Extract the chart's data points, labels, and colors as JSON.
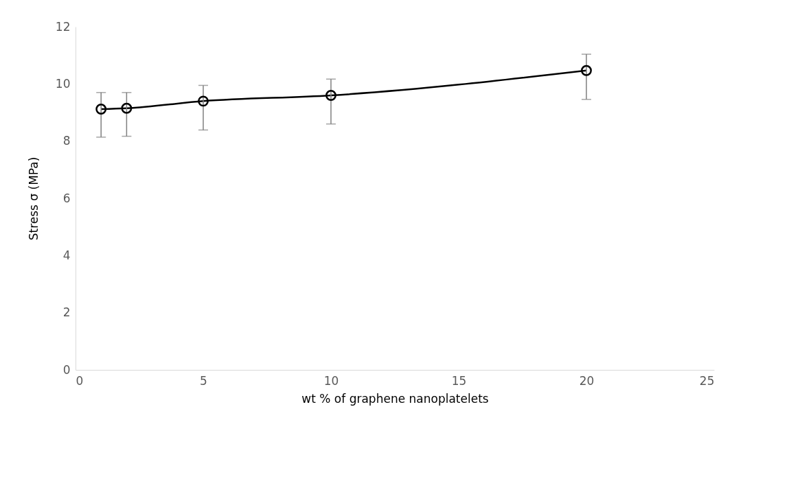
{
  "chart_data": {
    "type": "line",
    "xlabel": "wt % of graphene nanoplatelets",
    "ylabel": "Stress σ (MPa)",
    "x": [
      1,
      2,
      5,
      10,
      20
    ],
    "series": [
      {
        "color": "#000000",
        "values": [
          9.12,
          9.15,
          9.4,
          9.6,
          10.47
        ],
        "errors": [
          [
            8.14,
            9.7
          ],
          [
            8.17,
            9.7
          ],
          [
            8.39,
            9.95
          ],
          [
            8.6,
            10.17
          ],
          [
            9.46,
            11.04
          ]
        ]
      }
    ],
    "xlim": [
      0,
      25
    ],
    "xticks": [
      0,
      5,
      10,
      15,
      20,
      25
    ],
    "ylim": [
      0,
      12
    ],
    "yticks": [
      0,
      2,
      4,
      6,
      8,
      10,
      12
    ],
    "grid": false,
    "marker": "circle",
    "line_style": "solid"
  }
}
